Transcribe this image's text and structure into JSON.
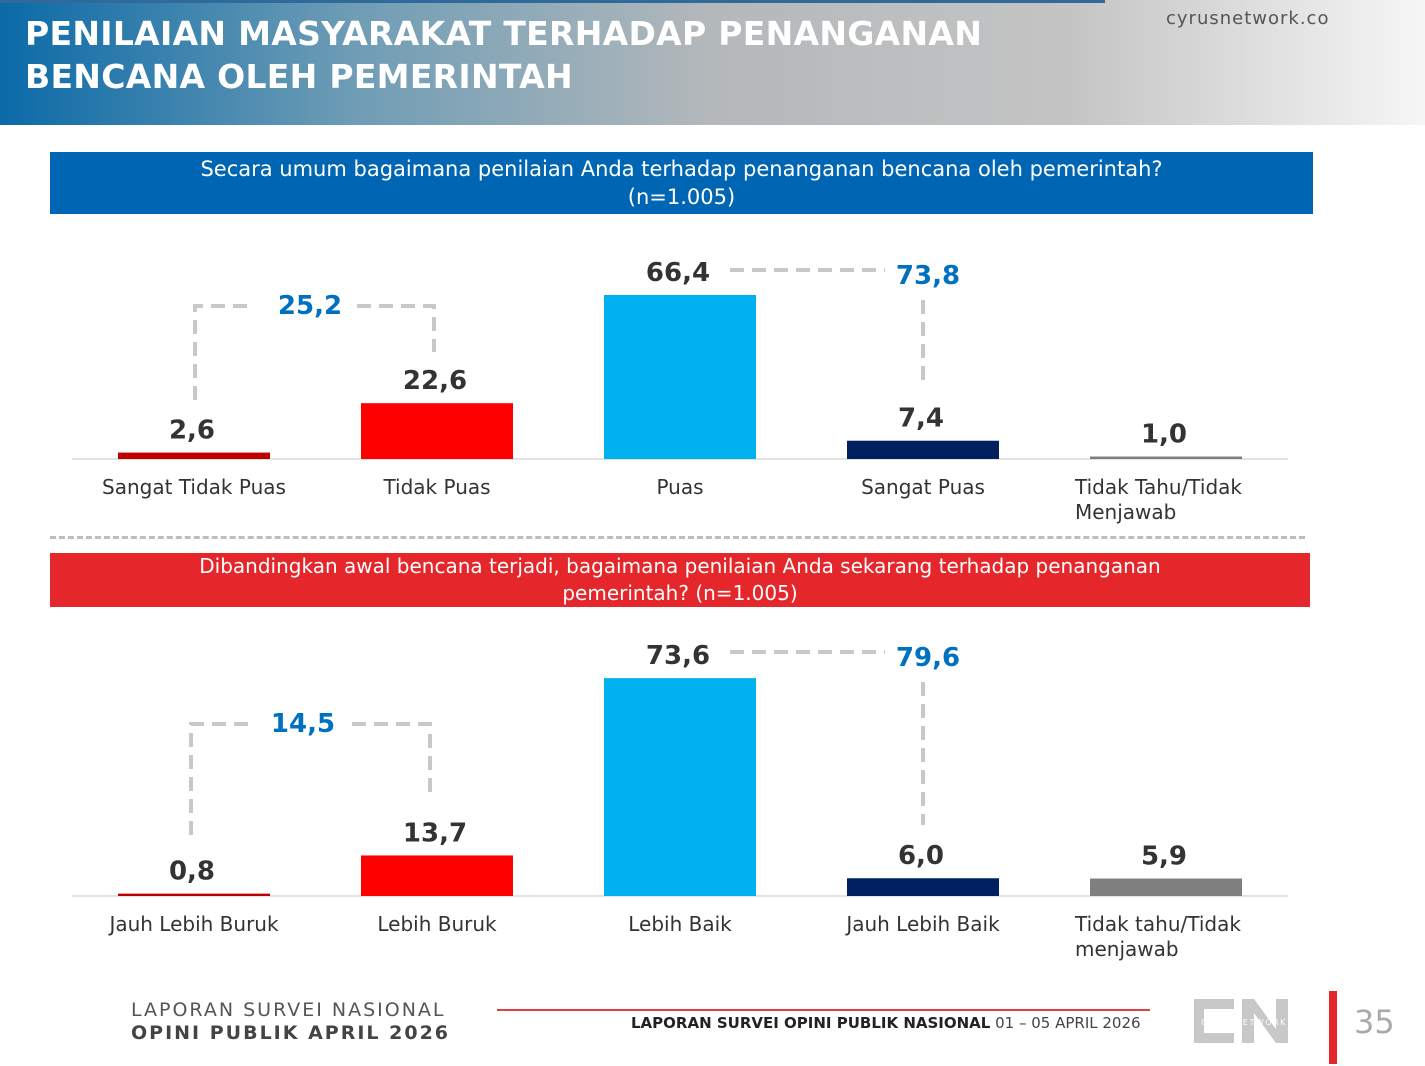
{
  "header": {
    "title_line1": "PENILAIAN MASYARAKAT TERHADAP PENANGANAN",
    "title_line2": "BENCANA OLEH PEMERINTAH",
    "site": "cyrusnetwork.co"
  },
  "chart_data": [
    {
      "type": "bar",
      "title": "Secara umum bagaimana penilaian Anda terhadap penanganan bencana oleh pemerintah? (n=1.005)",
      "categories": [
        "Sangat Tidak Puas",
        "Tidak Puas",
        "Puas",
        "Sangat Puas",
        "Tidak Tahu/Tidak Menjawab"
      ],
      "values": [
        2.6,
        22.6,
        66.4,
        7.4,
        1.0
      ],
      "labels": [
        "2,6",
        "22,6",
        "66,4",
        "7,4",
        "1,0"
      ],
      "colors": [
        "#c00000",
        "#ff0000",
        "#00b0f0",
        "#002060",
        "#7f7f7f"
      ],
      "groups": [
        {
          "label": "25,2",
          "members": [
            0,
            1
          ],
          "value": 25.2
        },
        {
          "label": "73,8",
          "members": [
            2,
            3
          ],
          "value": 73.8
        }
      ]
    },
    {
      "type": "bar",
      "title": "Dibandingkan awal bencana terjadi, bagaimana penilaian Anda sekarang terhadap penanganan pemerintah? (n=1.005)",
      "categories": [
        "Jauh Lebih Buruk",
        "Lebih Buruk",
        "Lebih Baik",
        "Jauh Lebih Baik",
        "Tidak tahu/Tidak menjawab"
      ],
      "values": [
        0.8,
        13.7,
        73.6,
        6.0,
        5.9
      ],
      "labels": [
        "0,8",
        "13,7",
        "73,6",
        "6,0",
        "5,9"
      ],
      "colors": [
        "#c00000",
        "#ff0000",
        "#00b0f0",
        "#002060",
        "#7f7f7f"
      ],
      "groups": [
        {
          "label": "14,5",
          "members": [
            0,
            1
          ],
          "value": 14.5
        },
        {
          "label": "79,6",
          "members": [
            2,
            3
          ],
          "value": 79.6
        }
      ]
    }
  ],
  "questions": {
    "q1_line1": "Secara umum bagaimana penilaian Anda terhadap penanganan bencana oleh pemerintah?",
    "q1_line2": "(n=1.005)",
    "q2_line1": "Dibandingkan awal bencana terjadi, bagaimana penilaian Anda sekarang terhadap penanganan",
    "q2_line2": "pemerintah? (n=1.005)"
  },
  "footer": {
    "report_line1": "LAPORAN SURVEI NASIONAL",
    "report_line2": "OPINI PUBLIK APRIL 2026",
    "center_bold": "LAPORAN SURVEI OPINI PUBLIK NASIONAL",
    "center_date": "01 – 05 APRIL 2026",
    "logo_text": "CYRUSNETWORK",
    "page": "35"
  },
  "colors": {
    "accent_blue": "#0066b3",
    "accent_red": "#e5262b",
    "group_label": "#0070c0"
  }
}
